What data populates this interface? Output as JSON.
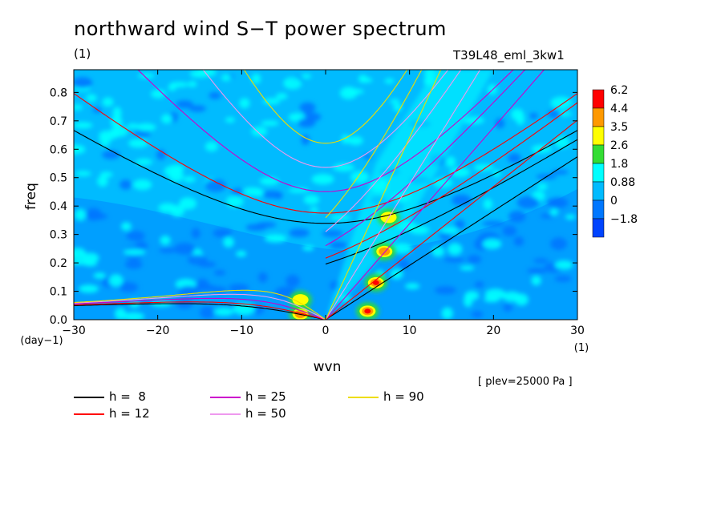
{
  "title": "northward wind S−T power spectrum",
  "unit_label": "(1)",
  "run_label": "T39L48_eml_3kw1",
  "level_label": "[ plev=25000 Pa ]",
  "chart_data": {
    "type": "heatmap",
    "xlabel": "wvn",
    "xunit": "(1)",
    "ylabel": "freq",
    "yunit": "(day−1)",
    "xlim": [
      -30,
      30
    ],
    "ylim": [
      0.0,
      0.88
    ],
    "xticks": [
      "−30",
      "−20",
      "−10",
      "0",
      "10",
      "20",
      "30"
    ],
    "xtick_values": [
      -30,
      -20,
      -10,
      0,
      10,
      20,
      30
    ],
    "yticks": [
      "0.0",
      "0.1",
      "0.2",
      "0.3",
      "0.4",
      "0.5",
      "0.6",
      "0.7",
      "0.8"
    ],
    "ytick_values": [
      0,
      0.1,
      0.2,
      0.3,
      0.4,
      0.5,
      0.6,
      0.7,
      0.8
    ],
    "colorbar": {
      "labels": [
        "6.2",
        "4.4",
        "3.5",
        "2.6",
        "1.8",
        "0.88",
        "0",
        "−1.8"
      ],
      "colors": [
        "#ff0000",
        "#ff9900",
        "#ffff00",
        "#33dd33",
        "#00ffff",
        "#00bbff",
        "#0077ff",
        "#0044ff"
      ]
    },
    "hot_spots": [
      {
        "x": 5,
        "y": 0.03,
        "level": 6.2
      },
      {
        "x": 6,
        "y": 0.13,
        "level": 6.0
      },
      {
        "x": 7,
        "y": 0.24,
        "level": 4.0
      },
      {
        "x": 7.5,
        "y": 0.36,
        "level": 2.6
      },
      {
        "x": -3,
        "y": 0.02,
        "level": 5.0
      },
      {
        "x": -3,
        "y": 0.07,
        "level": 3.0
      }
    ],
    "dispersion_curves": [
      {
        "label": "h =  8",
        "h": 8,
        "color": "#000000"
      },
      {
        "label": "h = 12",
        "h": 12,
        "color": "#ff0000"
      },
      {
        "label": "h = 25",
        "h": 25,
        "color": "#cc00cc"
      },
      {
        "label": "h = 50",
        "h": 50,
        "color": "#ee99ee"
      },
      {
        "label": "h = 90",
        "h": 90,
        "color": "#eedd00"
      }
    ]
  }
}
